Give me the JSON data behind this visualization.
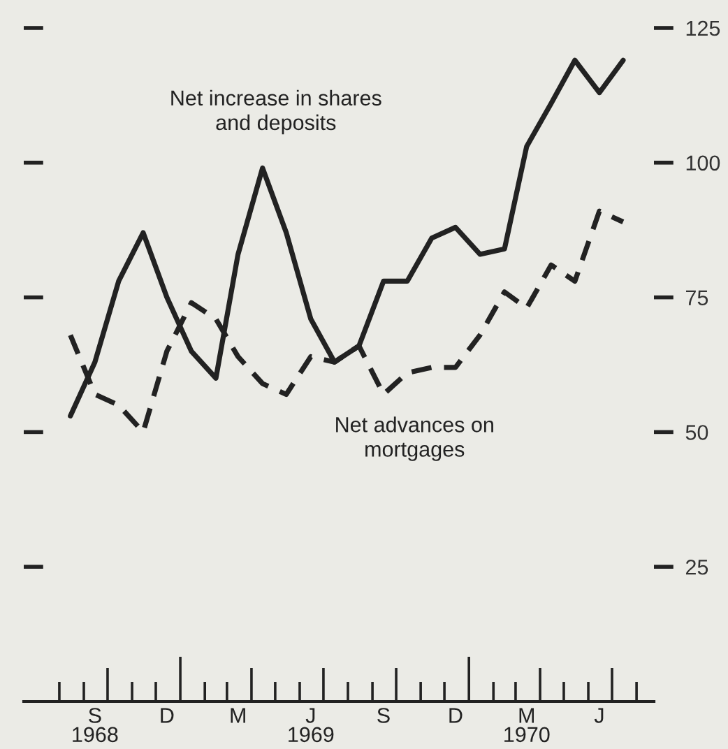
{
  "chart_data": {
    "type": "line",
    "x": [
      "1968-08-15",
      "1968-09-15",
      "1968-10-15",
      "1968-11-15",
      "1968-12-15",
      "1969-01-15",
      "1969-02-15",
      "1969-03-15",
      "1969-04-15",
      "1969-05-15",
      "1969-06-15",
      "1969-07-15",
      "1969-08-15",
      "1969-09-15",
      "1969-10-15",
      "1969-11-15",
      "1969-12-15",
      "1970-01-15",
      "1970-02-15",
      "1970-03-15",
      "1970-04-15",
      "1970-05-15",
      "1970-06-15",
      "1970-07-15"
    ],
    "series": [
      {
        "name": "Net increase in shares\nand deposits",
        "color": "#222222",
        "line_style": "solid",
        "values": [
          53,
          63,
          78,
          87,
          75,
          65,
          60,
          83,
          99,
          87,
          71,
          63,
          66,
          78,
          78,
          86,
          88,
          83,
          84,
          103,
          111,
          119,
          113,
          119
        ]
      },
      {
        "name": "Net advances on\nmortgages",
        "color": "#222222",
        "line_style": "dashed",
        "values": [
          68,
          57,
          55,
          50,
          65,
          74,
          71,
          64,
          59,
          57,
          64,
          63,
          66,
          57,
          61,
          62,
          62,
          68,
          76,
          73,
          81,
          78,
          91,
          89
        ]
      }
    ],
    "xlim": [
      "1968-06-17",
      "1970-08-23"
    ],
    "xticks": [
      {
        "value": "1968-08-01",
        "label": null
      },
      {
        "value": "1968-09-01",
        "label": null
      },
      {
        "value": "1968-10-01",
        "label": null
      },
      {
        "value": "1968-11-01",
        "label": null
      },
      {
        "value": "1968-12-01",
        "label": null
      },
      {
        "value": "1969-01-01",
        "label": null
      },
      {
        "value": "1969-02-01",
        "label": null
      },
      {
        "value": "1969-03-01",
        "label": null
      },
      {
        "value": "1969-04-01",
        "label": null
      },
      {
        "value": "1969-05-01",
        "label": null
      },
      {
        "value": "1969-06-01",
        "label": null
      },
      {
        "value": "1969-07-01",
        "label": null
      },
      {
        "value": "1969-08-01",
        "label": null
      },
      {
        "value": "1969-09-01",
        "label": null
      },
      {
        "value": "1969-10-01",
        "label": null
      },
      {
        "value": "1969-11-01",
        "label": null
      },
      {
        "value": "1969-12-01",
        "label": null
      },
      {
        "value": "1970-01-01",
        "label": null
      },
      {
        "value": "1970-02-01",
        "label": null
      },
      {
        "value": "1970-03-01",
        "label": null
      },
      {
        "value": "1970-04-01",
        "label": null
      },
      {
        "value": "1970-05-01",
        "label": null
      },
      {
        "value": "1970-06-01",
        "label": null
      },
      {
        "value": "1970-07-01",
        "label": null
      },
      {
        "value": "1970-08-01",
        "label": null
      },
      {
        "value": "1968-09-15",
        "label": "S\n1968"
      },
      {
        "value": "1968-12-15",
        "label": "D"
      },
      {
        "value": "1969-03-15",
        "label": "M"
      },
      {
        "value": "1969-06-15",
        "label": "J\n1969"
      },
      {
        "value": "1969-09-15",
        "label": "S"
      },
      {
        "value": "1969-12-15",
        "label": "D"
      },
      {
        "value": "1970-03-15",
        "label": "M\n1970"
      },
      {
        "value": "1970-06-15",
        "label": "J"
      }
    ],
    "ylim": [
      0,
      125
    ],
    "yticks": [
      25,
      50,
      75,
      100,
      125
    ],
    "grid": false,
    "legend": false,
    "marker": "none"
  }
}
